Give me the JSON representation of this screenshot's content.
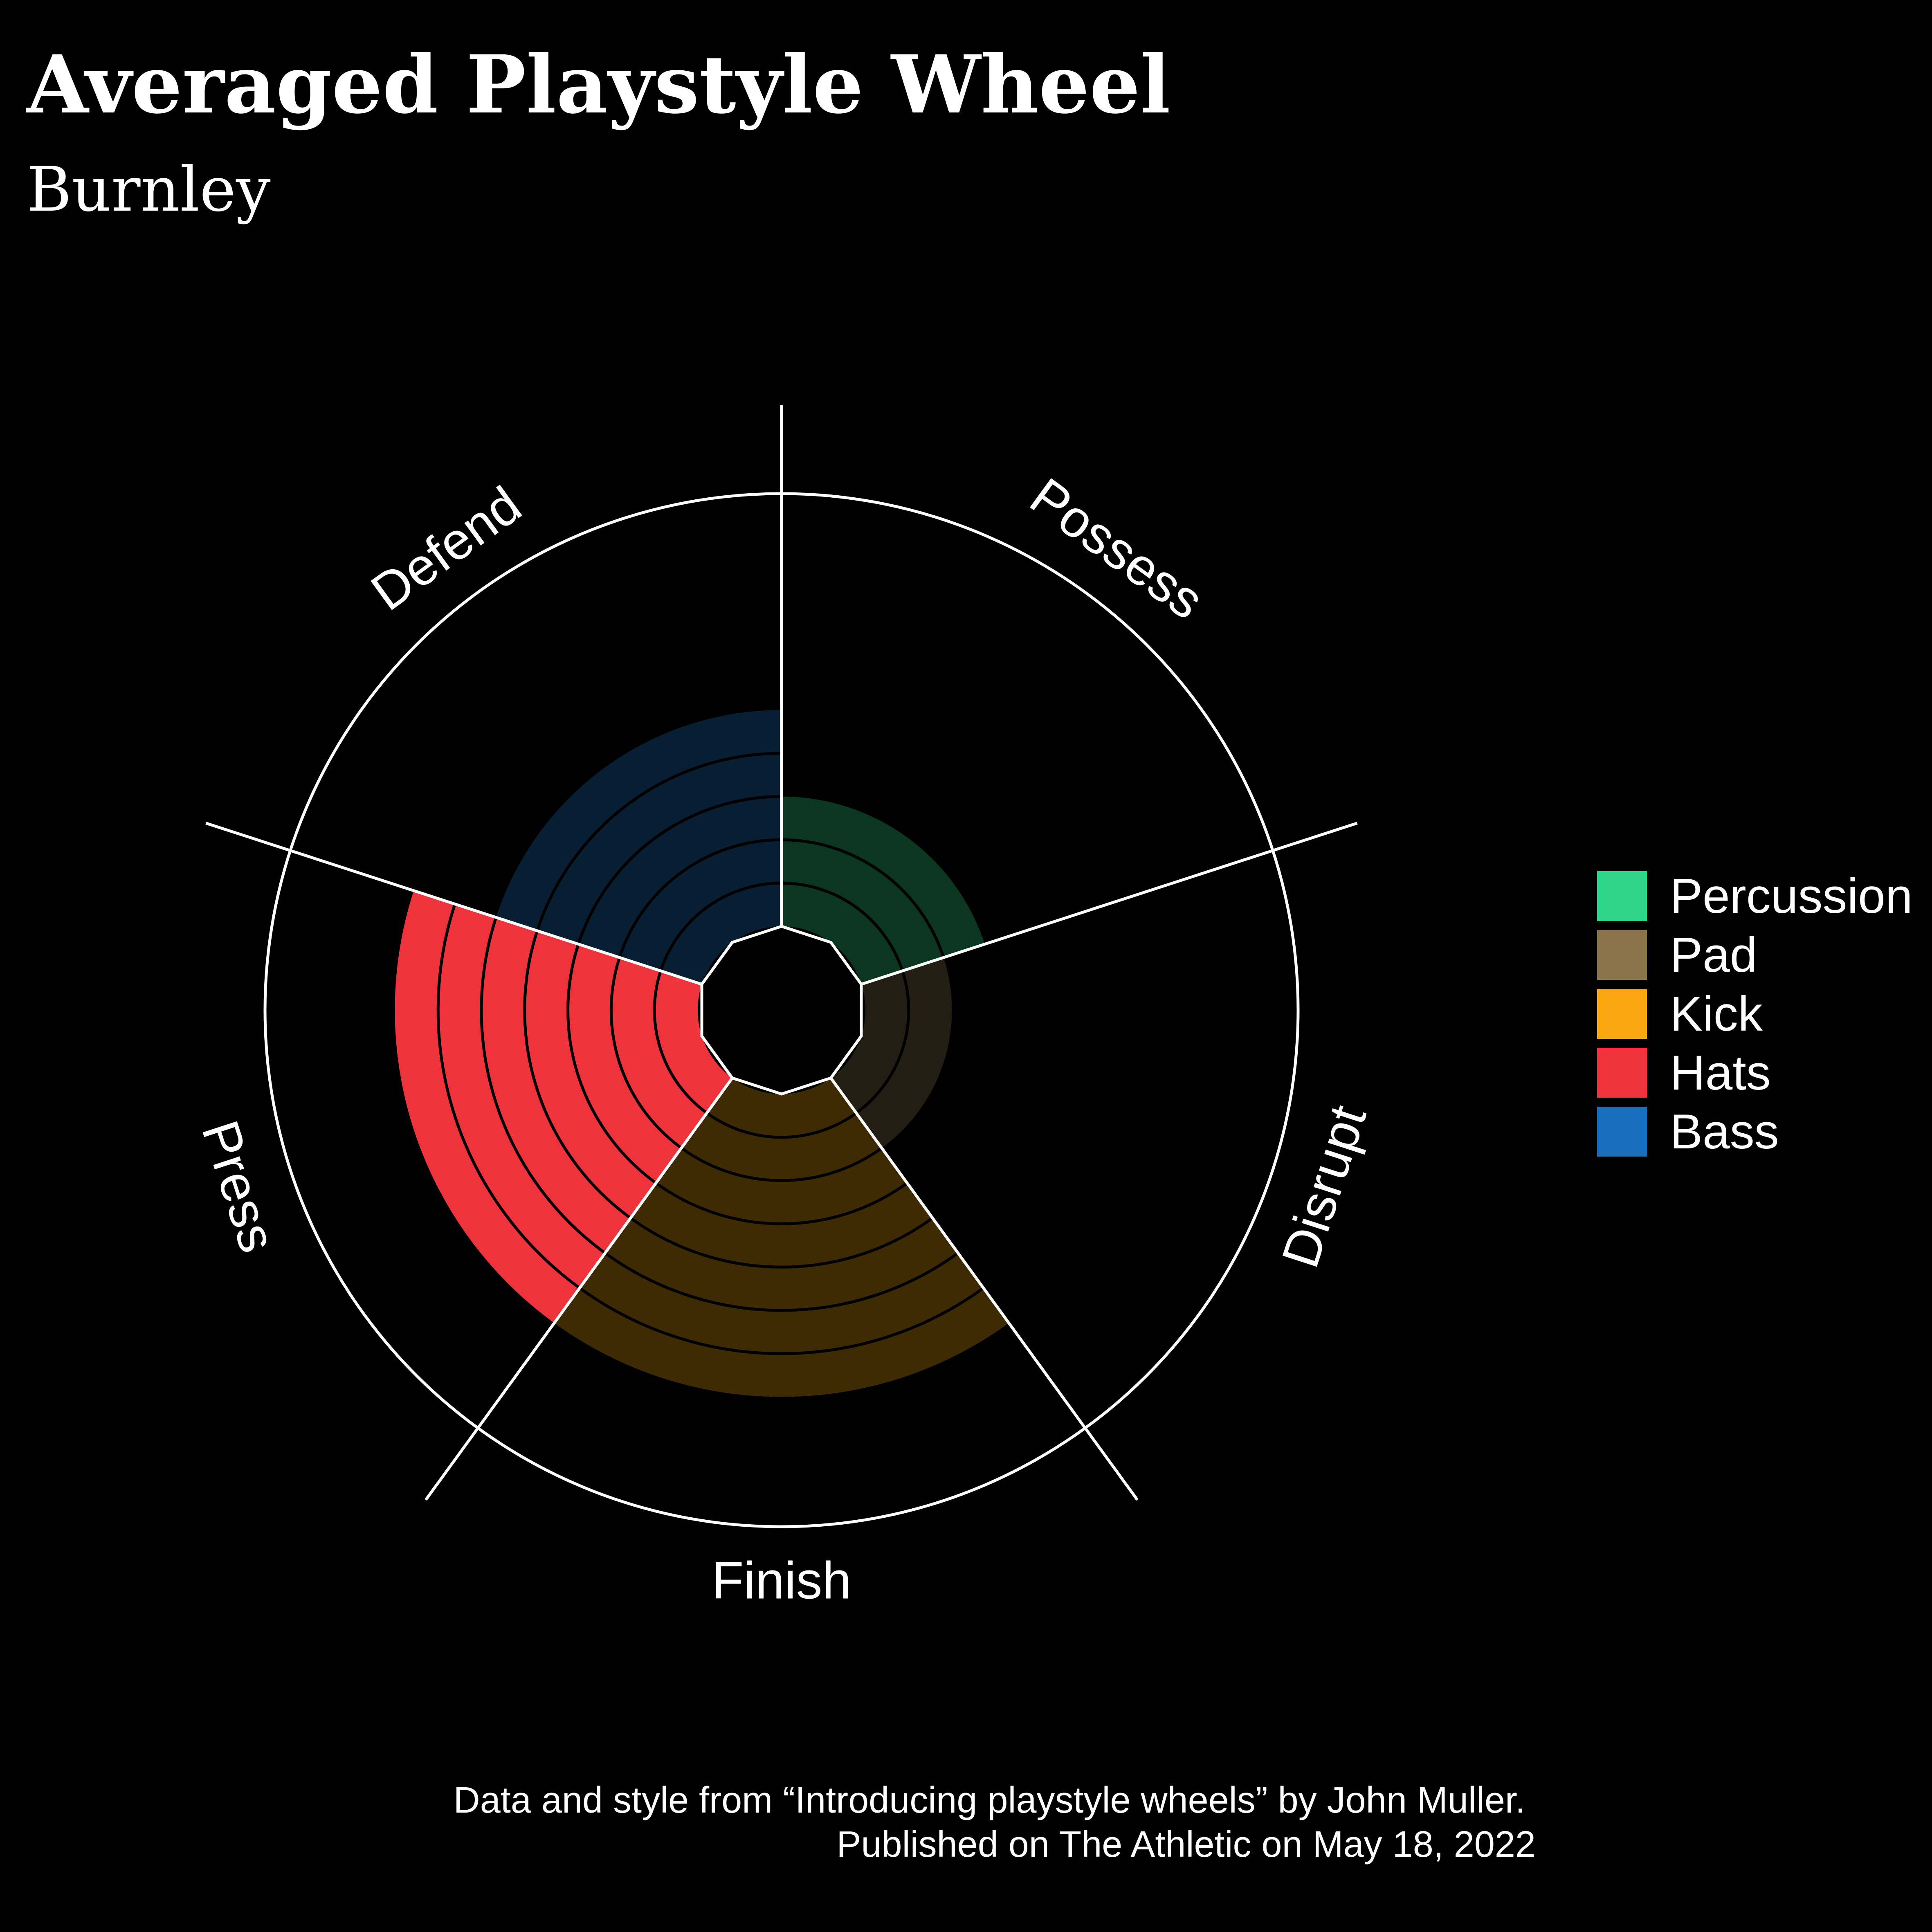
{
  "title": "Averaged Playstyle Wheel",
  "subtitle": "Burnley",
  "caption": {
    "line1": "Data and style from “Introducing playstyle wheels” by John Muller.",
    "line2": "Published on The Athletic on May 18, 2022"
  },
  "chart_data": {
    "type": "polar-bar",
    "title": "Averaged Playstyle Wheel",
    "subtitle": "Burnley",
    "categories": [
      "Possess",
      "Disrupt",
      "Finish",
      "Press",
      "Defend"
    ],
    "values": [
      3,
      2,
      7,
      7,
      5
    ],
    "max_value": 10,
    "legend_group": [
      "Percussion",
      "Pad",
      "Kick",
      "Hats",
      "Bass"
    ],
    "legend": [
      {
        "label": "Percussion",
        "color": "#2fd68a"
      },
      {
        "label": "Pad",
        "color": "#8a7449"
      },
      {
        "label": "Kick",
        "color": "#f9a90f"
      },
      {
        "label": "Hats",
        "color": "#ee333d"
      },
      {
        "label": "Bass",
        "color": "#1a6fbd"
      }
    ],
    "fill_colors": [
      "#0b3620",
      "#221e13",
      "#3e2b04",
      "#ee333d",
      "#071e33"
    ],
    "legend_position": "right"
  }
}
